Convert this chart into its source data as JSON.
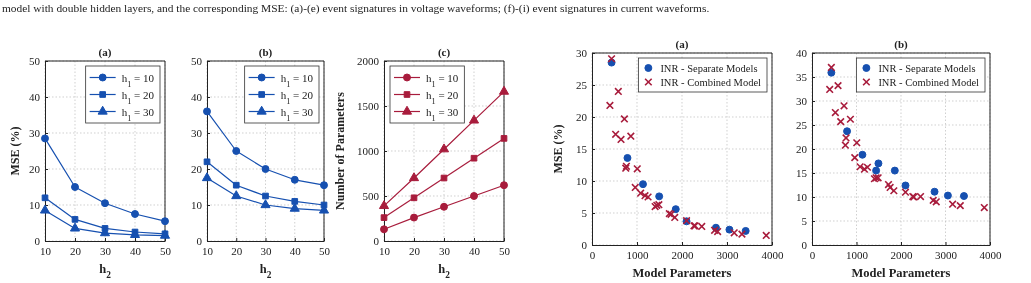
{
  "chart_data": [
    {
      "type": "line",
      "title": "(a)",
      "xlabel": "h$_{2}$",
      "ylabel": "MSE (%)",
      "x": [
        10,
        20,
        30,
        40,
        50
      ],
      "xlim": [
        10,
        50
      ],
      "xticks": [
        10,
        20,
        30,
        40,
        50
      ],
      "ylim": [
        0,
        50
      ],
      "yticks": [
        0,
        10,
        20,
        30,
        40,
        50
      ],
      "grid": true,
      "legend": "top right",
      "annotations": [
        "model with double hidden layers, and the corresponding MSE: (a)-(e) event signatures in voltage waveforms; (f)-(i) event signatures in current waveforms."
      ],
      "series": [
        {
          "name": "h$_{1}$ = 10",
          "color": "#1650b0",
          "marker": "circle",
          "values": [
            28.5,
            15,
            10.5,
            7.5,
            5.5
          ]
        },
        {
          "name": "h$_{1}$ = 20",
          "color": "#1650b0",
          "marker": "square",
          "values": [
            12,
            6,
            3.5,
            2.5,
            2
          ]
        },
        {
          "name": "h$_{1}$ = 30",
          "color": "#1650b0",
          "marker": "triangle",
          "values": [
            8.5,
            3.5,
            2.2,
            1.7,
            1.5
          ]
        }
      ]
    },
    {
      "type": "line",
      "title": "(b)",
      "xlabel": "h$_{2}$",
      "x": [
        10,
        20,
        30,
        40,
        50
      ],
      "xlim": [
        10,
        50
      ],
      "xticks": [
        10,
        20,
        30,
        40,
        50
      ],
      "ylim": [
        0,
        50
      ],
      "yticks": [
        0,
        10,
        20,
        30,
        40,
        50
      ],
      "grid": true,
      "legend": "top right",
      "series": [
        {
          "name": "h$_{1}$ = 10",
          "color": "#1650b0",
          "marker": "circle",
          "values": [
            36,
            25,
            20,
            17,
            15.5
          ]
        },
        {
          "name": "h$_{1}$ = 20",
          "color": "#1650b0",
          "marker": "square",
          "values": [
            22,
            15.5,
            12.5,
            11,
            10
          ]
        },
        {
          "name": "h$_{1}$ = 30",
          "color": "#1650b0",
          "marker": "triangle",
          "values": [
            17.5,
            12.5,
            10,
            9,
            8.5
          ]
        }
      ]
    },
    {
      "type": "line",
      "title": "(c)",
      "xlabel": "h$_{2}$",
      "ylabel": "Number of Parameters",
      "x": [
        10,
        20,
        30,
        40,
        50
      ],
      "xlim": [
        10,
        50
      ],
      "xticks": [
        10,
        20,
        30,
        40,
        50
      ],
      "ylim": [
        0,
        2000
      ],
      "yticks": [
        0,
        500,
        1000,
        1500,
        2000
      ],
      "grid": true,
      "legend": "top left",
      "series": [
        {
          "name": "h$_{1}$ = 10",
          "color": "#a81c3c",
          "marker": "circle",
          "values": [
            130,
            260,
            380,
            500,
            620
          ]
        },
        {
          "name": "h$_{1}$ = 20",
          "color": "#a81c3c",
          "marker": "square",
          "values": [
            260,
            480,
            700,
            920,
            1140
          ]
        },
        {
          "name": "h$_{1}$ = 30",
          "color": "#a81c3c",
          "marker": "triangle",
          "values": [
            390,
            700,
            1020,
            1340,
            1660
          ]
        }
      ]
    },
    {
      "type": "scatter",
      "title": "(a)",
      "xlabel": "Model Parameters",
      "ylabel": "MSE (%)",
      "xlim": [
        0,
        4000
      ],
      "xticks": [
        0,
        1000,
        2000,
        3000,
        4000
      ],
      "ylim": [
        0,
        30
      ],
      "yticks": [
        0,
        5,
        10,
        15,
        20,
        25,
        30
      ],
      "grid": true,
      "legend": "top right",
      "series": [
        {
          "name": "INR - Separate Models",
          "color": "#1650b0",
          "marker": "circle",
          "x": [
            435,
            788,
            1133,
            1493,
            1861,
            2101,
            2754,
            3054,
            3415
          ],
          "values": [
            28.5,
            13.6,
            9.5,
            7.6,
            5.6,
            3.7,
            2.7,
            2.4,
            2.2
          ]
        },
        {
          "name": "INR - Combined Model",
          "color": "#a81c3c",
          "marker": "cross",
          "x": [
            435,
            398,
            585,
            525,
            720,
            645,
            863,
            765,
            750,
            1006,
            961,
            1081,
            1178,
            1246,
            1403,
            1441,
            1486,
            1719,
            1756,
            1839,
            2101,
            2266,
            2289,
            2439,
            2724,
            2792,
            3160,
            3332,
            3872
          ],
          "values": [
            29.1,
            21.8,
            24.0,
            17.3,
            19.7,
            16.5,
            17.0,
            12.3,
            12.0,
            11.9,
            9.0,
            8.1,
            7.7,
            7.5,
            6.0,
            6.2,
            6.3,
            4.9,
            4.8,
            4.3,
            3.8,
            3.0,
            3.0,
            2.9,
            2.3,
            2.1,
            1.9,
            1.7,
            1.5
          ]
        }
      ]
    },
    {
      "type": "scatter",
      "title": "(b)",
      "xlabel": "Model Parameters",
      "xlim": [
        0,
        4000
      ],
      "xticks": [
        0,
        1000,
        2000,
        3000,
        4000
      ],
      "ylim": [
        0,
        40
      ],
      "yticks": [
        0,
        5,
        10,
        15,
        20,
        25,
        30,
        35,
        40
      ],
      "grid": true,
      "legend": "top right",
      "series": [
        {
          "name": "INR - Separate Models",
          "color": "#1650b0",
          "marker": "circle",
          "x": [
            435,
            788,
            1133,
            1441,
            1493,
            1861,
            2101,
            2754,
            3054,
            3415
          ],
          "values": [
            35.9,
            23.7,
            18.8,
            15.5,
            17.0,
            15.5,
            12.4,
            11.1,
            10.3,
            10.2
          ]
        },
        {
          "name": "INR - Combined Model",
          "color": "#a81c3c",
          "marker": "cross",
          "x": [
            435,
            398,
            585,
            525,
            720,
            645,
            863,
            765,
            750,
            1006,
            961,
            1081,
            1178,
            1246,
            1403,
            1441,
            1486,
            1719,
            1756,
            1839,
            2101,
            2266,
            2289,
            2439,
            2724,
            2792,
            3160,
            3332,
            3872
          ],
          "values": [
            37.0,
            32.4,
            33.2,
            27.6,
            29.0,
            25.7,
            26.2,
            22.3,
            20.8,
            21.3,
            18.2,
            16.3,
            15.8,
            16.2,
            13.8,
            14.0,
            14.0,
            12.6,
            12.0,
            11.3,
            11.0,
            10.1,
            10.0,
            10.1,
            9.3,
            9.0,
            8.5,
            8.2,
            7.8
          ]
        }
      ]
    }
  ]
}
